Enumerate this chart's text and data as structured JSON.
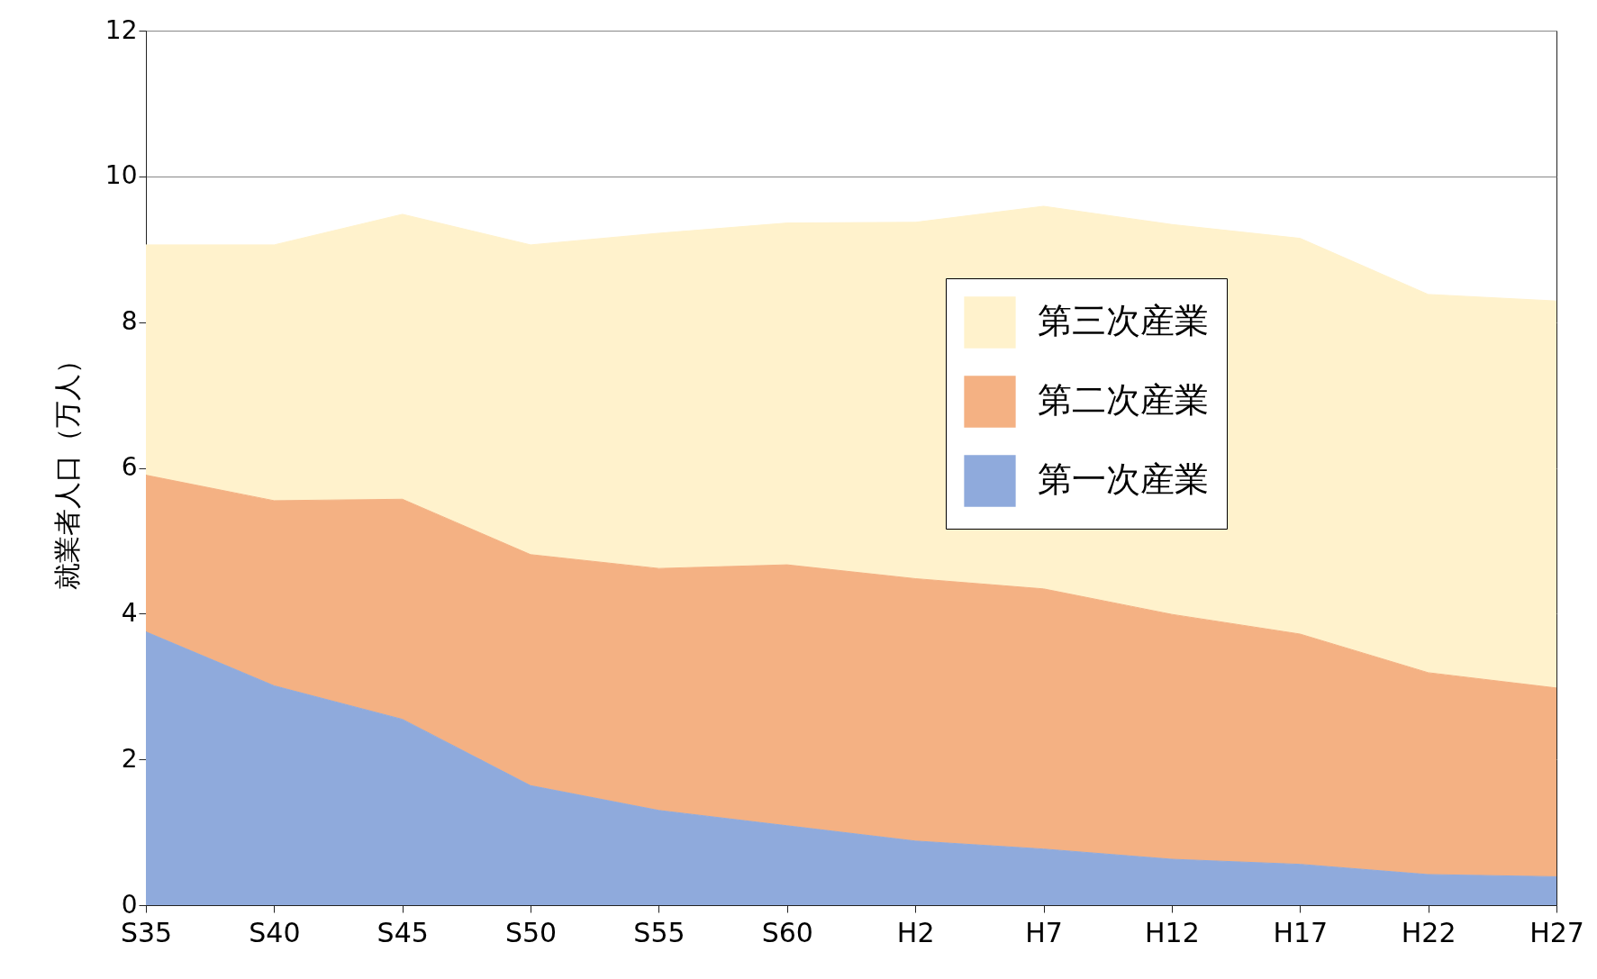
{
  "chart_data": {
    "type": "area",
    "stacked": true,
    "ylabel": "就業者人口（万人）",
    "categories": [
      "S35",
      "S40",
      "S45",
      "S50",
      "S55",
      "S60",
      "H2",
      "H7",
      "H12",
      "H17",
      "H22",
      "H27"
    ],
    "series": [
      {
        "name": "第一次産業",
        "color": "#8faadc",
        "values": [
          3.75,
          3.01,
          2.55,
          1.64,
          1.3,
          1.09,
          0.88,
          0.77,
          0.63,
          0.56,
          0.42,
          0.39
        ]
      },
      {
        "name": "第二次産業",
        "color": "#f4b183",
        "values": [
          2.15,
          2.54,
          3.02,
          3.17,
          3.32,
          3.58,
          3.6,
          3.57,
          3.36,
          3.16,
          2.77,
          2.59
        ]
      },
      {
        "name": "第三次産業",
        "color": "#fff2cc",
        "values": [
          3.16,
          3.51,
          3.91,
          4.25,
          4.6,
          4.69,
          4.89,
          5.25,
          5.35,
          5.43,
          5.19,
          5.31
        ]
      }
    ],
    "ylim": [
      0,
      12
    ],
    "yticks": [
      0,
      2,
      4,
      6,
      8,
      10,
      12
    ],
    "grid": "y",
    "legend": "top right"
  }
}
